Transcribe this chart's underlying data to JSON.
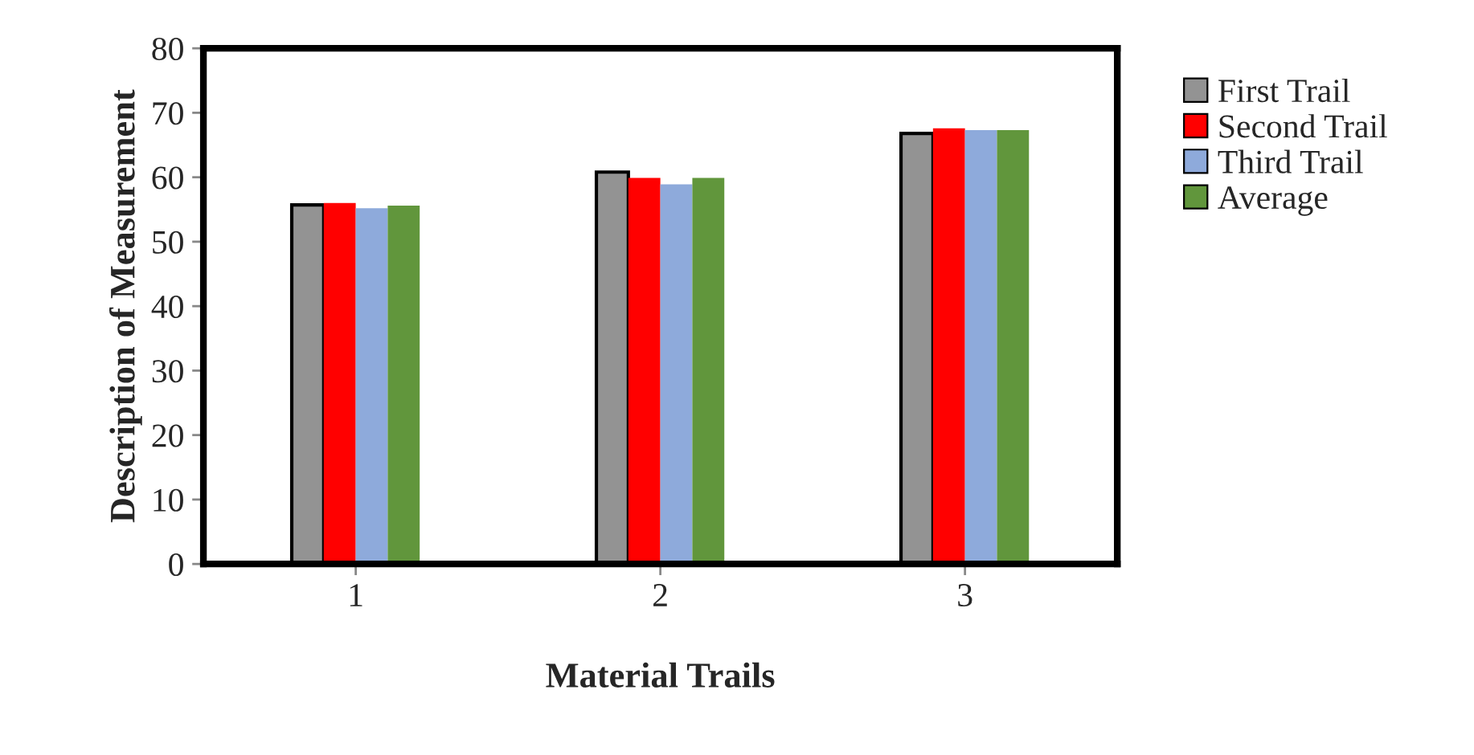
{
  "chart_data": {
    "type": "bar",
    "xlabel": "Material Trails",
    "ylabel": "Description of Measurement",
    "categories": [
      "1",
      "2",
      "3"
    ],
    "series": [
      {
        "name": "First Trail",
        "color": "#939393",
        "values": [
          55.7,
          60.8,
          66.8
        ]
      },
      {
        "name": "Second Trail",
        "color": "#ff0000",
        "values": [
          56,
          59.9,
          67.6
        ]
      },
      {
        "name": "Third Trail",
        "color": "#8eaadb",
        "values": [
          55.2,
          58.9,
          67.3
        ]
      },
      {
        "name": "Average",
        "color": "#61963c",
        "values": [
          55.6,
          59.9,
          67.3
        ]
      }
    ],
    "ylim": [
      0,
      80
    ],
    "yticks": [
      0,
      10,
      20,
      30,
      40,
      50,
      60,
      70,
      80
    ],
    "grid": false,
    "legend": "right"
  }
}
